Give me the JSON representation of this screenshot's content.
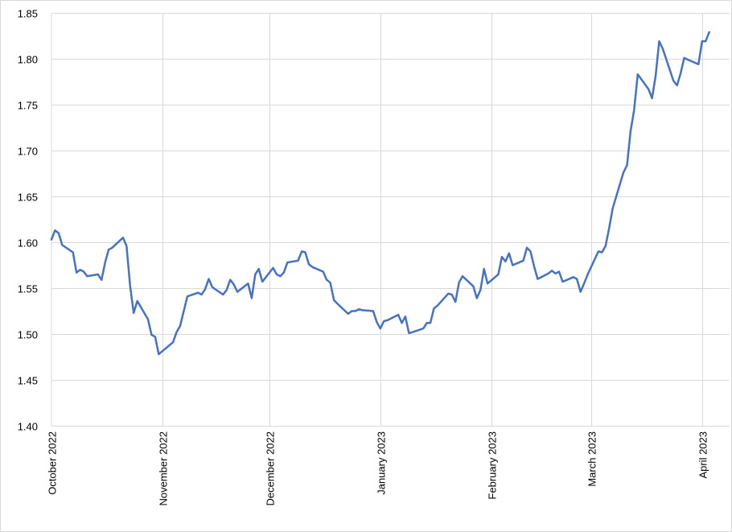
{
  "chart_data": {
    "type": "line",
    "title": "",
    "xlabel": "",
    "ylabel": "",
    "x_range": [
      "2022-10-01",
      "2023-04-06"
    ],
    "ylim": [
      1.4,
      1.85
    ],
    "y_ticks": [
      "1.40",
      "1.45",
      "1.50",
      "1.55",
      "1.60",
      "1.65",
      "1.70",
      "1.75",
      "1.80",
      "1.85"
    ],
    "x_ticks": [
      {
        "date": "2022-10-01",
        "label": "October 2022"
      },
      {
        "date": "2022-11-01",
        "label": "November 2022"
      },
      {
        "date": "2022-12-01",
        "label": "December 2022"
      },
      {
        "date": "2023-01-01",
        "label": "January 2023"
      },
      {
        "date": "2023-02-01",
        "label": "February 2023"
      },
      {
        "date": "2023-03-01",
        "label": "March 2023"
      },
      {
        "date": "2023-04-01",
        "label": "April 2023"
      }
    ],
    "grid": true,
    "series": [
      {
        "color": "#4472c4",
        "points": [
          [
            "2022-10-01",
            1.603
          ],
          [
            "2022-10-02",
            1.613
          ],
          [
            "2022-10-03",
            1.61
          ],
          [
            "2022-10-04",
            1.597
          ],
          [
            "2022-10-07",
            1.589
          ],
          [
            "2022-10-08",
            1.567
          ],
          [
            "2022-10-09",
            1.57
          ],
          [
            "2022-10-10",
            1.568
          ],
          [
            "2022-10-11",
            1.563
          ],
          [
            "2022-10-14",
            1.565
          ],
          [
            "2022-10-15",
            1.559
          ],
          [
            "2022-10-16",
            1.578
          ],
          [
            "2022-10-17",
            1.592
          ],
          [
            "2022-10-18",
            1.594
          ],
          [
            "2022-10-21",
            1.605
          ],
          [
            "2022-10-22",
            1.596
          ],
          [
            "2022-10-23",
            1.552
          ],
          [
            "2022-10-24",
            1.523
          ],
          [
            "2022-10-25",
            1.536
          ],
          [
            "2022-10-28",
            1.516
          ],
          [
            "2022-10-29",
            1.499
          ],
          [
            "2022-10-30",
            1.497
          ],
          [
            "2022-10-31",
            1.478
          ],
          [
            "2022-11-04",
            1.491
          ],
          [
            "2022-11-05",
            1.502
          ],
          [
            "2022-11-06",
            1.509
          ],
          [
            "2022-11-08",
            1.541
          ],
          [
            "2022-11-11",
            1.545
          ],
          [
            "2022-11-12",
            1.543
          ],
          [
            "2022-11-13",
            1.549
          ],
          [
            "2022-11-14",
            1.56
          ],
          [
            "2022-11-15",
            1.551
          ],
          [
            "2022-11-18",
            1.543
          ],
          [
            "2022-11-19",
            1.548
          ],
          [
            "2022-11-20",
            1.559
          ],
          [
            "2022-11-21",
            1.554
          ],
          [
            "2022-11-22",
            1.546
          ],
          [
            "2022-11-25",
            1.555
          ],
          [
            "2022-11-26",
            1.539
          ],
          [
            "2022-11-27",
            1.565
          ],
          [
            "2022-11-28",
            1.571
          ],
          [
            "2022-11-29",
            1.557
          ],
          [
            "2022-12-02",
            1.572
          ],
          [
            "2022-12-03",
            1.565
          ],
          [
            "2022-12-04",
            1.563
          ],
          [
            "2022-12-05",
            1.567
          ],
          [
            "2022-12-06",
            1.578
          ],
          [
            "2022-12-09",
            1.58
          ],
          [
            "2022-12-10",
            1.59
          ],
          [
            "2022-12-11",
            1.589
          ],
          [
            "2022-12-12",
            1.576
          ],
          [
            "2022-12-13",
            1.573
          ],
          [
            "2022-12-16",
            1.568
          ],
          [
            "2022-12-17",
            1.559
          ],
          [
            "2022-12-18",
            1.556
          ],
          [
            "2022-12-19",
            1.537
          ],
          [
            "2022-12-20",
            1.533
          ],
          [
            "2022-12-23",
            1.522
          ],
          [
            "2022-12-24",
            1.525
          ],
          [
            "2022-12-25",
            1.525
          ],
          [
            "2022-12-26",
            1.527
          ],
          [
            "2022-12-27",
            1.526
          ],
          [
            "2022-12-30",
            1.525
          ],
          [
            "2022-12-31",
            1.513
          ],
          [
            "2023-01-01",
            1.506
          ],
          [
            "2023-01-02",
            1.514
          ],
          [
            "2023-01-03",
            1.515
          ],
          [
            "2023-01-06",
            1.521
          ],
          [
            "2023-01-07",
            1.512
          ],
          [
            "2023-01-08",
            1.519
          ],
          [
            "2023-01-09",
            1.501
          ],
          [
            "2023-01-10",
            1.502
          ],
          [
            "2023-01-13",
            1.506
          ],
          [
            "2023-01-14",
            1.512
          ],
          [
            "2023-01-15",
            1.512
          ],
          [
            "2023-01-16",
            1.528
          ],
          [
            "2023-01-17",
            1.531
          ],
          [
            "2023-01-20",
            1.544
          ],
          [
            "2023-01-21",
            1.543
          ],
          [
            "2023-01-22",
            1.535
          ],
          [
            "2023-01-23",
            1.556
          ],
          [
            "2023-01-24",
            1.563
          ],
          [
            "2023-01-27",
            1.552
          ],
          [
            "2023-01-28",
            1.539
          ],
          [
            "2023-01-29",
            1.548
          ],
          [
            "2023-01-30",
            1.571
          ],
          [
            "2023-01-31",
            1.555
          ],
          [
            "2023-02-03",
            1.565
          ],
          [
            "2023-02-04",
            1.584
          ],
          [
            "2023-02-05",
            1.579
          ],
          [
            "2023-02-06",
            1.588
          ],
          [
            "2023-02-07",
            1.575
          ],
          [
            "2023-02-10",
            1.58
          ],
          [
            "2023-02-11",
            1.594
          ],
          [
            "2023-02-12",
            1.59
          ],
          [
            "2023-02-13",
            1.574
          ],
          [
            "2023-02-14",
            1.56
          ],
          [
            "2023-02-17",
            1.566
          ],
          [
            "2023-02-18",
            1.569
          ],
          [
            "2023-02-19",
            1.566
          ],
          [
            "2023-02-20",
            1.568
          ],
          [
            "2023-02-21",
            1.557
          ],
          [
            "2023-02-24",
            1.562
          ],
          [
            "2023-02-25",
            1.56
          ],
          [
            "2023-02-26",
            1.546
          ],
          [
            "2023-02-27",
            1.555
          ],
          [
            "2023-02-28",
            1.565
          ],
          [
            "2023-03-03",
            1.59
          ],
          [
            "2023-03-04",
            1.589
          ],
          [
            "2023-03-05",
            1.596
          ],
          [
            "2023-03-06",
            1.615
          ],
          [
            "2023-03-07",
            1.637
          ],
          [
            "2023-03-10",
            1.676
          ],
          [
            "2023-03-11",
            1.684
          ],
          [
            "2023-03-12",
            1.721
          ],
          [
            "2023-03-13",
            1.744
          ],
          [
            "2023-03-14",
            1.783
          ],
          [
            "2023-03-17",
            1.767
          ],
          [
            "2023-03-18",
            1.757
          ],
          [
            "2023-03-19",
            1.781
          ],
          [
            "2023-03-20",
            1.819
          ],
          [
            "2023-03-21",
            1.811
          ],
          [
            "2023-03-24",
            1.776
          ],
          [
            "2023-03-25",
            1.771
          ],
          [
            "2023-03-26",
            1.784
          ],
          [
            "2023-03-27",
            1.801
          ],
          [
            "2023-03-28",
            1.799
          ],
          [
            "2023-03-31",
            1.794
          ],
          [
            "2023-04-01",
            1.819
          ],
          [
            "2023-04-02",
            1.819
          ],
          [
            "2023-04-03",
            1.829
          ]
        ]
      }
    ]
  }
}
